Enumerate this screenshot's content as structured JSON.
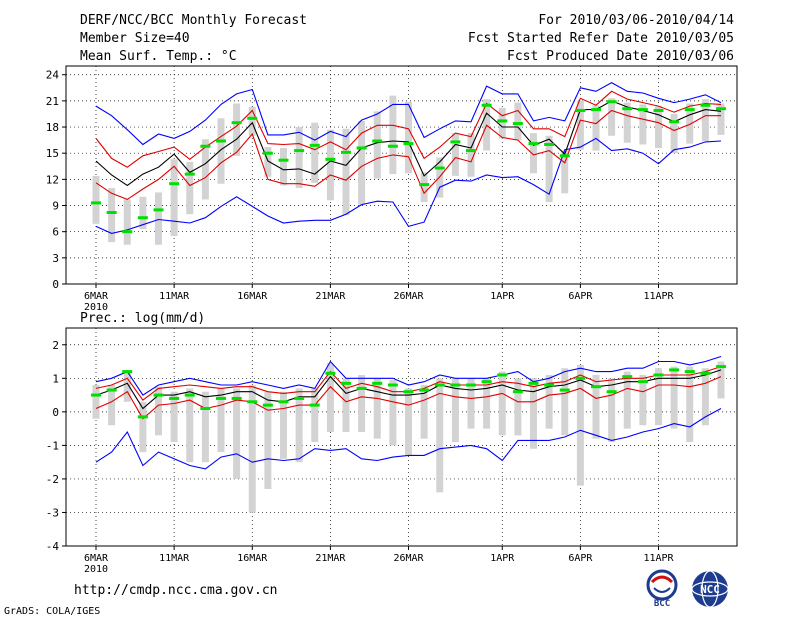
{
  "header": {
    "title": "DERF/NCC/BCC Monthly Forecast",
    "member_size": "Member Size=40",
    "variable1": "Mean Surf. Temp.: °C",
    "period": "For 2010/03/06-2010/04/14",
    "started": "Fcst Started Refer Date 2010/03/05",
    "produced": "Fcst Produced Date 2010/03/06"
  },
  "footer": {
    "url": "http://cmdp.ncc.cma.gov.cn",
    "credit": "GrADS: COLA/IGES"
  },
  "logos": {
    "bcc_label": "BCC",
    "ncc_label": "NCC"
  },
  "colors": {
    "envelope": "#0000ff",
    "spread": "#e00000",
    "mean": "#000000",
    "median": "#00e000",
    "box": "#d3d3d3",
    "grid": "#000000"
  },
  "chart_data": [
    {
      "type": "line",
      "title": "Mean Surf. Temp.: °C",
      "ylabel": "°C",
      "ylim": [
        0,
        25
      ],
      "yticks": [
        0,
        3,
        6,
        9,
        12,
        15,
        18,
        21,
        24
      ],
      "xticks": [
        {
          "day": 0,
          "label": "6MAR",
          "sub": "2010"
        },
        {
          "day": 5,
          "label": "11MAR"
        },
        {
          "day": 10,
          "label": "16MAR"
        },
        {
          "day": 15,
          "label": "21MAR"
        },
        {
          "day": 20,
          "label": "26MAR"
        },
        {
          "day": 26,
          "label": "1APR"
        },
        {
          "day": 31,
          "label": "6APR"
        },
        {
          "day": 36,
          "label": "11APR"
        }
      ],
      "series": [
        {
          "name": "max",
          "values": [
            20.4,
            19.3,
            17.7,
            16.0,
            17.2,
            16.7,
            17.5,
            18.8,
            20.6,
            21.8,
            22.3,
            17.1,
            17.1,
            17.4,
            16.5,
            17.5,
            16.9,
            18.8,
            19.5,
            20.6,
            20.6,
            16.8,
            17.8,
            18.7,
            18.6,
            22.7,
            21.8,
            21.8,
            18.7,
            19.1,
            18.7,
            22.5,
            22.1,
            23.1,
            22.1,
            21.9,
            21.3,
            20.8,
            21.2,
            21.7,
            20.8
          ]
        },
        {
          "name": "upper",
          "values": [
            16.7,
            14.4,
            13.4,
            14.7,
            15.2,
            15.7,
            14.3,
            15.7,
            16.9,
            18.1,
            19.9,
            16.1,
            16.0,
            16.1,
            15.4,
            16.3,
            15.4,
            17.3,
            18.2,
            18.2,
            17.8,
            14.4,
            15.7,
            17.3,
            16.9,
            20.7,
            19.3,
            19.9,
            17.8,
            17.8,
            16.9,
            21.3,
            20.5,
            22.1,
            21.2,
            20.8,
            20.4,
            19.7,
            20.4,
            20.7,
            20.6
          ]
        },
        {
          "name": "mean",
          "values": [
            14.1,
            12.5,
            11.3,
            12.6,
            13.4,
            14.9,
            12.8,
            13.8,
            15.4,
            16.6,
            18.5,
            14.1,
            13.1,
            13.2,
            12.6,
            14.1,
            13.6,
            15.6,
            16.2,
            16.4,
            16.3,
            12.4,
            14.0,
            16.0,
            15.6,
            19.6,
            18.0,
            18.0,
            15.9,
            16.6,
            14.9,
            20.0,
            20.0,
            21.0,
            20.3,
            19.9,
            19.4,
            18.6,
            19.4,
            20.0,
            19.8
          ]
        },
        {
          "name": "lower",
          "values": [
            11.6,
            10.4,
            9.7,
            10.9,
            12.0,
            13.5,
            11.3,
            12.2,
            13.9,
            15.1,
            17.2,
            12.0,
            11.5,
            11.5,
            11.2,
            12.5,
            11.9,
            13.5,
            14.4,
            14.8,
            14.6,
            10.4,
            12.3,
            14.5,
            14.0,
            18.2,
            16.8,
            16.5,
            14.8,
            15.3,
            13.9,
            18.8,
            18.4,
            19.9,
            19.3,
            18.9,
            18.5,
            17.6,
            18.3,
            19.3,
            19.3
          ]
        },
        {
          "name": "min",
          "values": [
            6.6,
            5.8,
            6.2,
            6.8,
            7.4,
            7.2,
            7.0,
            7.6,
            8.9,
            10.0,
            8.9,
            7.8,
            7.0,
            7.2,
            7.3,
            7.3,
            8.0,
            9.1,
            9.5,
            9.4,
            6.6,
            7.1,
            11.1,
            11.9,
            11.8,
            12.5,
            12.2,
            12.3,
            11.4,
            10.3,
            15.4,
            15.7,
            16.7,
            15.3,
            15.5,
            15.0,
            13.8,
            15.4,
            15.7,
            16.3,
            16.4
          ]
        },
        {
          "name": "median",
          "values": [
            9.3,
            8.2,
            6.0,
            7.6,
            8.5,
            11.5,
            12.6,
            15.8,
            16.4,
            18.5,
            19.0,
            15.0,
            14.2,
            15.3,
            15.9,
            14.3,
            15.1,
            15.6,
            16.4,
            15.8,
            16.1,
            11.4,
            13.3,
            16.3,
            15.3,
            20.5,
            18.7,
            18.4,
            16.1,
            16.0,
            14.7,
            19.9,
            20.0,
            20.9,
            20.1,
            20.0,
            19.9,
            18.6,
            20.0,
            20.5,
            20.1
          ]
        },
        {
          "name": "box_top",
          "values": [
            12.4,
            11.0,
            9.7,
            10.0,
            10.5,
            14.3,
            14.0,
            16.6,
            19.0,
            20.7,
            20.3,
            15.7,
            15.6,
            18.0,
            18.5,
            17.7,
            17.8,
            18.7,
            19.8,
            21.6,
            20.9,
            12.8,
            14.5,
            17.3,
            17.3,
            21.2,
            20.2,
            20.8,
            17.3,
            17.0,
            15.3,
            21.0,
            20.5,
            21.3,
            20.8,
            20.6,
            20.4,
            19.5,
            20.7,
            21.2,
            20.7
          ]
        },
        {
          "name": "box_bottom",
          "values": [
            6.9,
            4.8,
            4.5,
            6.3,
            4.5,
            5.5,
            8.0,
            9.7,
            11.5,
            14.7,
            17.0,
            12.3,
            11.3,
            11.0,
            11.6,
            9.6,
            7.9,
            9.1,
            12.1,
            12.6,
            12.7,
            9.4,
            9.9,
            12.4,
            12.3,
            15.3,
            16.7,
            16.5,
            12.7,
            9.4,
            10.4,
            15.4,
            15.3,
            17.0,
            16.2,
            16.0,
            15.6,
            15.0,
            16.1,
            16.4,
            17.1
          ]
        }
      ]
    },
    {
      "type": "line",
      "title": "Prec.: log(mm/d)",
      "ylabel": "log(mm/d)",
      "ylim": [
        -4,
        2.5
      ],
      "yticks": [
        -4,
        -3,
        -2,
        -1,
        0,
        1,
        2
      ],
      "xticks": [
        {
          "day": 0,
          "label": "6MAR",
          "sub": "2010"
        },
        {
          "day": 5,
          "label": "11MAR"
        },
        {
          "day": 10,
          "label": "16MAR"
        },
        {
          "day": 15,
          "label": "21MAR"
        },
        {
          "day": 20,
          "label": "26MAR"
        },
        {
          "day": 26,
          "label": "1APR"
        },
        {
          "day": 31,
          "label": "6APR"
        },
        {
          "day": 36,
          "label": "11APR"
        }
      ],
      "series": [
        {
          "name": "max",
          "values": [
            0.9,
            1.0,
            1.2,
            0.5,
            0.8,
            0.9,
            1.0,
            0.9,
            0.8,
            0.8,
            0.9,
            0.8,
            0.7,
            0.8,
            0.7,
            1.5,
            1.0,
            1.0,
            1.0,
            1.0,
            0.8,
            0.9,
            1.1,
            1.0,
            1.0,
            1.0,
            1.1,
            1.2,
            0.9,
            1.0,
            1.2,
            1.3,
            1.2,
            1.2,
            1.3,
            1.3,
            1.5,
            1.5,
            1.4,
            1.5,
            1.65
          ]
        },
        {
          "name": "upper",
          "values": [
            0.7,
            0.8,
            1.0,
            0.35,
            0.7,
            0.75,
            0.8,
            0.75,
            0.7,
            0.75,
            0.75,
            0.6,
            0.55,
            0.6,
            0.6,
            1.2,
            0.7,
            0.85,
            0.75,
            0.6,
            0.6,
            0.7,
            0.9,
            0.8,
            0.8,
            0.8,
            0.9,
            0.85,
            0.75,
            0.85,
            0.9,
            1.1,
            0.9,
            0.95,
            1.0,
            1.0,
            1.1,
            1.1,
            1.1,
            1.2,
            1.35
          ]
        },
        {
          "name": "mean",
          "values": [
            0.5,
            0.65,
            0.85,
            0.1,
            0.5,
            0.5,
            0.6,
            0.45,
            0.5,
            0.6,
            0.6,
            0.35,
            0.3,
            0.45,
            0.45,
            1.05,
            0.55,
            0.7,
            0.6,
            0.5,
            0.5,
            0.55,
            0.8,
            0.7,
            0.65,
            0.7,
            0.8,
            0.65,
            0.6,
            0.75,
            0.8,
            0.95,
            0.75,
            0.8,
            0.9,
            0.9,
            1.0,
            1.0,
            1.0,
            1.1,
            1.25
          ]
        },
        {
          "name": "lower",
          "values": [
            0.1,
            0.3,
            0.6,
            -0.2,
            0.2,
            0.25,
            0.35,
            0.1,
            0.2,
            0.35,
            0.3,
            0.05,
            0.1,
            0.2,
            0.2,
            0.75,
            0.3,
            0.45,
            0.4,
            0.3,
            0.2,
            0.35,
            0.55,
            0.45,
            0.4,
            0.45,
            0.55,
            0.3,
            0.3,
            0.5,
            0.55,
            0.7,
            0.4,
            0.5,
            0.7,
            0.6,
            0.8,
            0.8,
            0.75,
            0.85,
            1.05
          ]
        },
        {
          "name": "min",
          "values": [
            -1.5,
            -1.2,
            -0.6,
            -1.6,
            -1.2,
            -1.4,
            -1.6,
            -1.7,
            -1.35,
            -1.25,
            -1.5,
            -1.4,
            -1.45,
            -1.4,
            -1.1,
            -1.15,
            -1.1,
            -1.4,
            -1.45,
            -1.35,
            -1.3,
            -1.3,
            -1.1,
            -1.05,
            -1.0,
            -1.1,
            -1.45,
            -0.85,
            -0.85,
            -0.85,
            -0.75,
            -0.55,
            -0.7,
            -0.85,
            -0.75,
            -0.6,
            -0.5,
            -0.35,
            -0.45,
            -0.15,
            0.1
          ]
        },
        {
          "name": "median",
          "values": [
            0.5,
            0.65,
            1.2,
            -0.15,
            0.5,
            0.4,
            0.5,
            0.1,
            0.4,
            0.4,
            0.3,
            0.2,
            0.3,
            0.4,
            0.2,
            1.15,
            0.85,
            0.7,
            0.85,
            0.8,
            0.6,
            0.65,
            0.8,
            0.8,
            0.8,
            0.9,
            1.1,
            0.6,
            0.85,
            0.8,
            0.65,
            1.0,
            0.75,
            0.6,
            1.05,
            0.9,
            1.1,
            1.25,
            1.2,
            1.15,
            1.35
          ]
        },
        {
          "name": "box_top",
          "values": [
            0.8,
            0.8,
            1.25,
            0.3,
            0.75,
            0.6,
            0.7,
            0.6,
            0.7,
            0.7,
            0.8,
            0.6,
            0.6,
            0.7,
            0.7,
            1.45,
            1.0,
            1.1,
            1.0,
            0.95,
            0.7,
            0.8,
            1.0,
            1.0,
            1.0,
            1.0,
            1.2,
            1.0,
            1.0,
            1.1,
            1.3,
            1.4,
            1.1,
            1.0,
            1.2,
            1.1,
            1.3,
            1.35,
            1.35,
            1.3,
            1.5
          ]
        },
        {
          "name": "box_bottom",
          "values": [
            -0.2,
            -0.4,
            0.3,
            -1.2,
            -0.7,
            -0.9,
            -1.5,
            -1.5,
            -1.2,
            -2.0,
            -3.0,
            -2.3,
            -1.4,
            -1.5,
            -0.9,
            -0.6,
            -0.6,
            -0.6,
            -0.8,
            -1.0,
            -1.3,
            -0.8,
            -2.4,
            -0.9,
            -0.5,
            -0.5,
            -0.7,
            -0.7,
            -1.1,
            -0.5,
            -0.7,
            -2.2,
            -0.8,
            -0.9,
            -0.5,
            -0.4,
            -0.4,
            -0.5,
            -0.9,
            -0.4,
            0.4
          ]
        }
      ]
    }
  ]
}
